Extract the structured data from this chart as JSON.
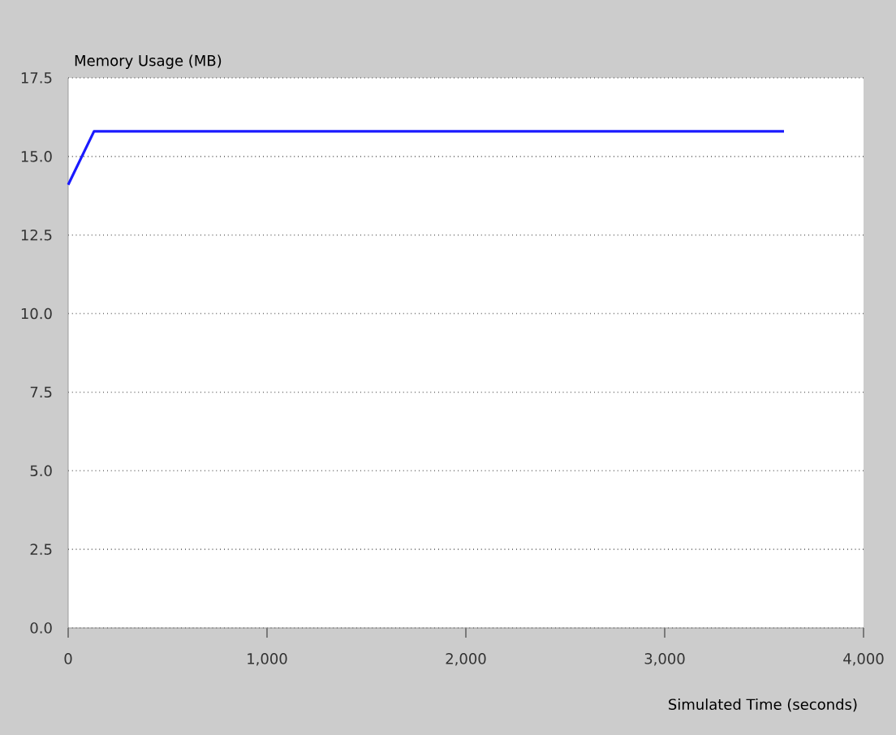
{
  "chart_data": {
    "type": "line",
    "xlabel": "Simulated Time (seconds)",
    "ylabel": "Memory Usage (MB)",
    "x": [
      0,
      130,
      3600
    ],
    "series": [
      {
        "color": "#1a1aff",
        "values": [
          14.1,
          15.8,
          15.8
        ]
      }
    ],
    "xlim": [
      0,
      4000
    ],
    "ylim": [
      0,
      17.5
    ],
    "xticks": [
      {
        "value": 0,
        "label": "0"
      },
      {
        "value": 1000,
        "label": "1,000"
      },
      {
        "value": 2000,
        "label": "2,000"
      },
      {
        "value": 3000,
        "label": "3,000"
      },
      {
        "value": 4000,
        "label": "4,000"
      }
    ],
    "yticks": [
      {
        "value": 0,
        "label": "0.0"
      },
      {
        "value": 2.5,
        "label": "2.5"
      },
      {
        "value": 5,
        "label": "5.0"
      },
      {
        "value": 7.5,
        "label": "7.5"
      },
      {
        "value": 10,
        "label": "10.0"
      },
      {
        "value": 12.5,
        "label": "12.5"
      },
      {
        "value": 15,
        "label": "15.0"
      },
      {
        "value": 17.5,
        "label": "17.5"
      }
    ],
    "grid": "y",
    "marker": "none",
    "line_style": "solid"
  }
}
